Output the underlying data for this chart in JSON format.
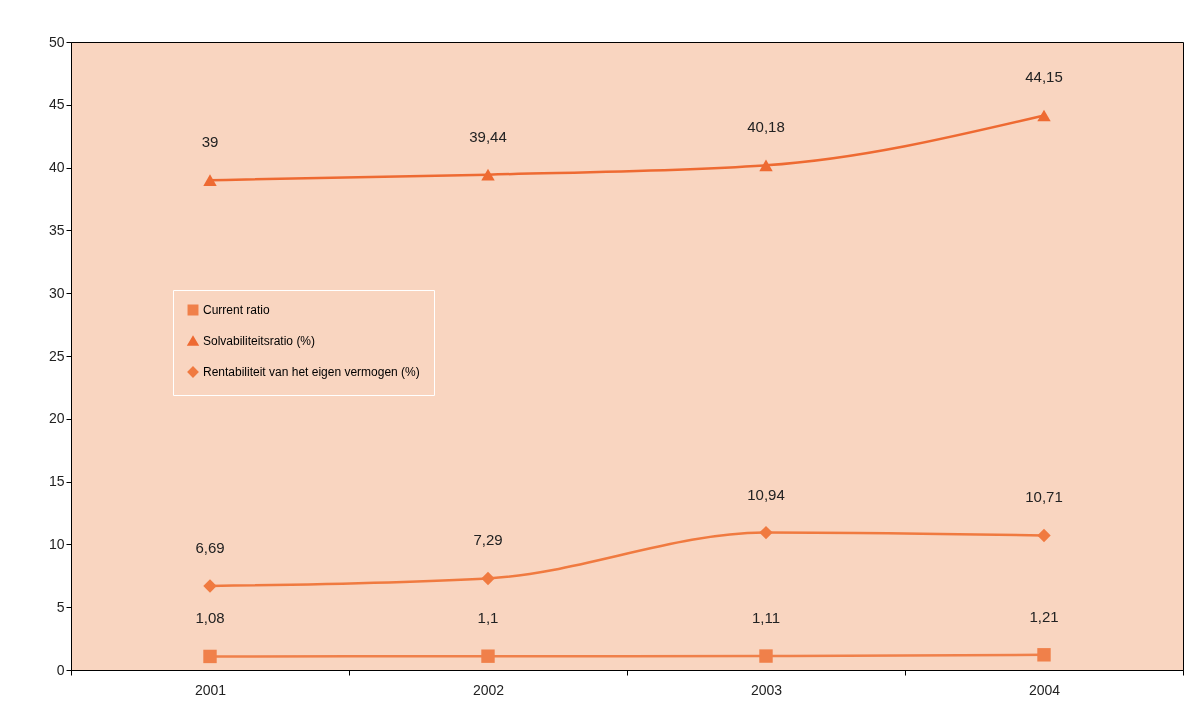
{
  "chart_data": {
    "type": "line",
    "categories": [
      "2001",
      "2002",
      "2003",
      "2004"
    ],
    "series": [
      {
        "name": "Current ratio",
        "color": "#f0804a",
        "marker": "square",
        "values": [
          1.08,
          1.1,
          1.11,
          1.21
        ],
        "value_labels": [
          "1,08",
          "1,1",
          "1,11",
          "1,21"
        ]
      },
      {
        "name": "Solvabiliteitsratio (%)",
        "color": "#ee6a32",
        "marker": "triangle",
        "values": [
          39,
          39.44,
          40.18,
          44.15
        ],
        "value_labels": [
          "39",
          "39,44",
          "40,18",
          "44,15"
        ]
      },
      {
        "name": "Rentabiliteit van het eigen vermogen (%)",
        "color": "#f07a40",
        "marker": "diamond",
        "values": [
          6.69,
          7.29,
          10.94,
          10.71
        ],
        "value_labels": [
          "6,69",
          "7,29",
          "10,94",
          "10,71"
        ]
      }
    ],
    "ylim": [
      0,
      50
    ],
    "yticks": [
      0,
      5,
      10,
      15,
      20,
      25,
      30,
      35,
      40,
      45,
      50
    ],
    "grid": false,
    "legend": "left",
    "line_style": "solid"
  }
}
